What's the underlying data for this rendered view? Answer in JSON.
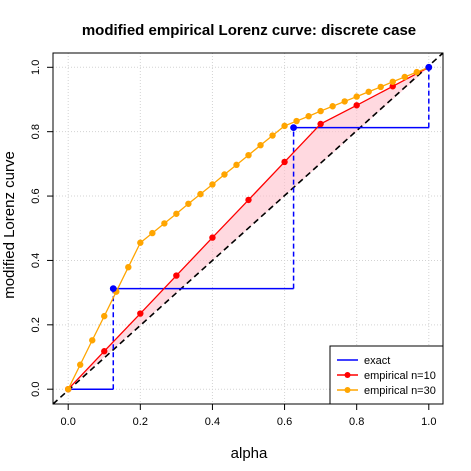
{
  "chart_data": {
    "type": "line",
    "title": "modified empirical Lorenz curve: discrete case",
    "xlabel": "alpha",
    "ylabel": "modified Lorenz curve",
    "xlim": [
      0,
      1
    ],
    "ylim": [
      0,
      1
    ],
    "x_ticks": [
      "0.0",
      "0.2",
      "0.4",
      "0.6",
      "0.8",
      "1.0"
    ],
    "y_ticks": [
      "0.0",
      "0.2",
      "0.4",
      "0.6",
      "0.8",
      "1.0"
    ],
    "grid": true,
    "diagonal": true,
    "legend_position": "bottom-right",
    "colors": {
      "exact": "#0000ff",
      "empirical10": "#ff0000",
      "empirical30": "#ffa500",
      "shade": "#ffc0cb",
      "diagonal": "#000000",
      "grid": "#d3d3d3"
    },
    "series": [
      {
        "name": "exact",
        "step_points": [
          [
            0,
            0
          ],
          [
            0.125,
            0
          ],
          [
            0.125,
            0.3125
          ],
          [
            0.625,
            0.3125
          ],
          [
            0.625,
            0.8125
          ],
          [
            1,
            0.8125
          ],
          [
            1,
            1
          ]
        ],
        "markers": [
          [
            0.125,
            0.3125
          ],
          [
            0.625,
            0.8125
          ],
          [
            1,
            1
          ]
        ]
      },
      {
        "name": "empirical n=10",
        "x": [
          0,
          0.1,
          0.2,
          0.3,
          0.4,
          0.5,
          0.6,
          0.7,
          0.8,
          0.9,
          1.0
        ],
        "values": [
          0,
          0.118,
          0.235,
          0.353,
          0.471,
          0.588,
          0.706,
          0.824,
          0.882,
          0.941,
          1.0
        ]
      },
      {
        "name": "empirical n=30",
        "x": [
          0,
          0.0333,
          0.0667,
          0.1,
          0.1333,
          0.1667,
          0.2,
          0.2333,
          0.2667,
          0.3,
          0.3333,
          0.3667,
          0.4,
          0.4333,
          0.4667,
          0.5,
          0.5333,
          0.5667,
          0.6,
          0.6333,
          0.6667,
          0.7,
          0.7333,
          0.7667,
          0.8,
          0.8333,
          0.8667,
          0.9,
          0.9333,
          0.9667,
          1.0
        ],
        "values": [
          0,
          0.076,
          0.152,
          0.227,
          0.303,
          0.379,
          0.455,
          0.485,
          0.515,
          0.545,
          0.576,
          0.606,
          0.636,
          0.667,
          0.697,
          0.727,
          0.758,
          0.788,
          0.818,
          0.833,
          0.848,
          0.864,
          0.879,
          0.894,
          0.909,
          0.924,
          0.939,
          0.955,
          0.97,
          0.985,
          1.0
        ]
      }
    ]
  }
}
